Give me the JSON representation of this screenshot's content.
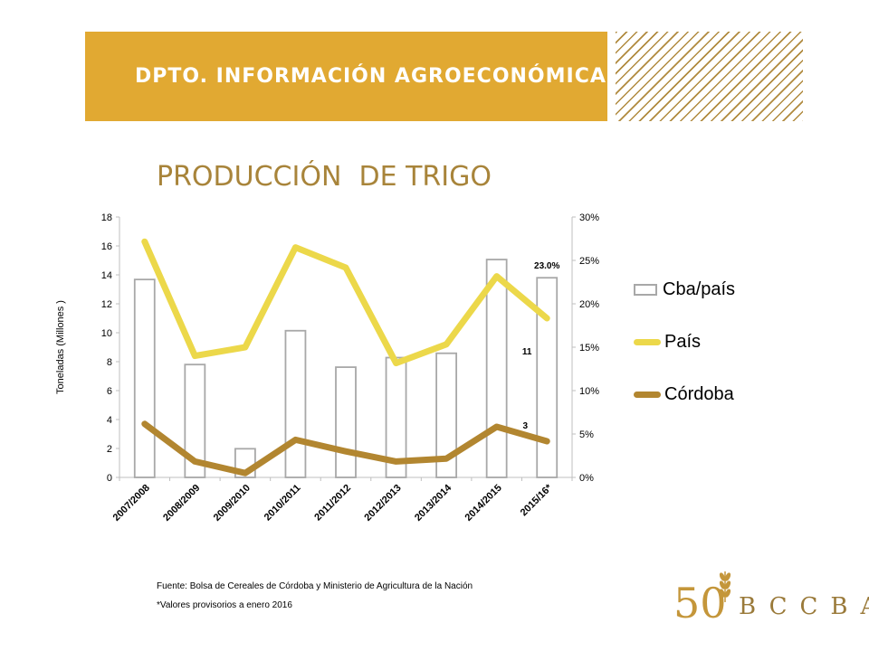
{
  "header": {
    "title": "DPTO. INFORMACIÓN AGROECONÓMICA"
  },
  "chart_data": {
    "type": "bar",
    "title": "PRODUCCIÓN  DE TRIGO",
    "ylabel": "Toneladas (Millones )",
    "ylim": [
      0,
      18
    ],
    "y_ticks": [
      "0",
      "2",
      "4",
      "6",
      "8",
      "10",
      "12",
      "14",
      "16",
      "18"
    ],
    "y2lim": [
      0,
      30
    ],
    "y2_ticks": [
      "0%",
      "5%",
      "10%",
      "15%",
      "20%",
      "25%",
      "30%"
    ],
    "categories": [
      "2007/2008",
      "2008/2009",
      "2009/2010",
      "2010/2011",
      "2011/2012",
      "2012/2013",
      "2013/2014",
      "2014/2015",
      "2015/16*"
    ],
    "legend_position": "right",
    "series": [
      {
        "name": "Cba/país",
        "type": "bar",
        "axis": "right",
        "color": "#a8a8a8",
        "values": [
          22.8,
          13.0,
          3.3,
          16.9,
          12.7,
          13.8,
          14.3,
          25.1,
          23.0
        ]
      },
      {
        "name": "País",
        "type": "line",
        "axis": "left",
        "color": "#ecd84a",
        "values": [
          16.3,
          8.4,
          9.0,
          15.9,
          14.5,
          7.9,
          9.2,
          13.9,
          11.0
        ]
      },
      {
        "name": "Córdoba",
        "type": "line",
        "axis": "left",
        "color": "#b28630",
        "values": [
          3.7,
          1.1,
          0.3,
          2.6,
          1.8,
          1.1,
          1.3,
          3.5,
          2.5
        ]
      }
    ],
    "annotations": [
      {
        "text": "23.0%",
        "category": "2015/16*",
        "series": "Cba/país"
      },
      {
        "text": "11",
        "category": "2015/16*",
        "series": "País"
      },
      {
        "text": "3",
        "category": "2015/16*",
        "series": "Córdoba"
      }
    ]
  },
  "legend": {
    "items": [
      {
        "label": "Cba/país"
      },
      {
        "label": "País"
      },
      {
        "label": "Córdoba"
      }
    ]
  },
  "footer": {
    "source": "Fuente: Bolsa de Cereales de Córdoba y Ministerio de Agricultura de la Nación",
    "note": "*Valores provisorios a enero 2016"
  },
  "logo": {
    "number": "50",
    "text": "BCCBA"
  }
}
